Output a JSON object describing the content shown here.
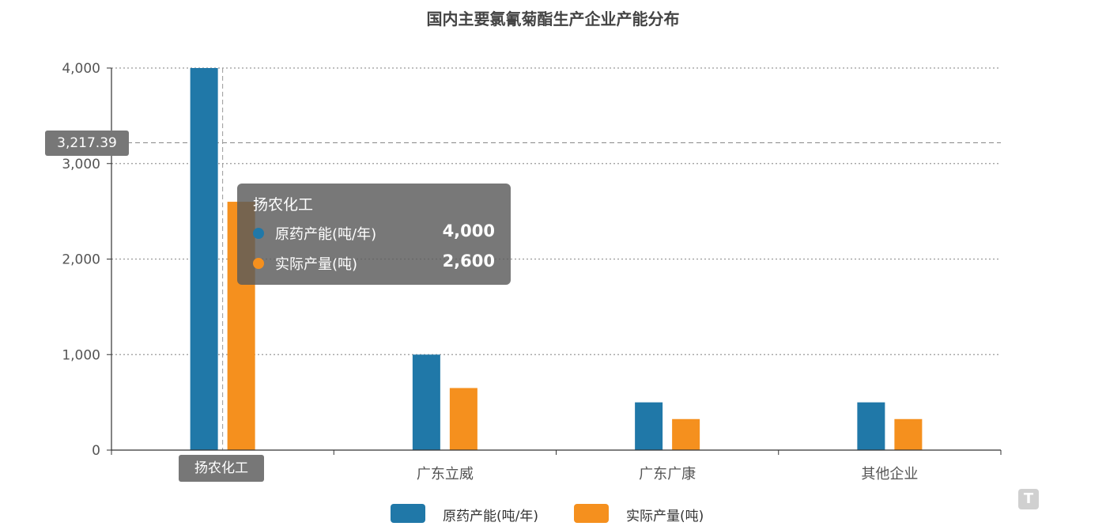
{
  "chart_data": {
    "type": "bar",
    "title": "国内主要氯氰菊酯生产企业产能分布",
    "categories": [
      "扬农化工",
      "广东立威",
      "广东广康",
      "其他企业"
    ],
    "series": [
      {
        "name": "原药产能(吨/年)",
        "color": "#2078a8",
        "values": [
          4000,
          1000,
          500,
          500
        ]
      },
      {
        "name": "实际产量(吨)",
        "color": "#f5901e",
        "values": [
          2600,
          650,
          325,
          325
        ]
      }
    ],
    "yticks": [
      "0",
      "1,000",
      "2,000",
      "3,000",
      "4,000"
    ],
    "ylim": [
      0,
      4000
    ],
    "grid": true,
    "legend_position": "bottom",
    "axis_pointer": {
      "y_value": "3,217.39",
      "y_numeric": 3217.39,
      "category": "扬农化工"
    },
    "tooltip": {
      "title": "扬农化工",
      "rows": [
        {
          "name": "原药产能(吨/年)",
          "value": "4,000"
        },
        {
          "name": "实际产量(吨)",
          "value": "2,600"
        }
      ]
    }
  },
  "watermark": {
    "logo_icon": "tmtpost-logo-icon",
    "logo_letter": "T"
  }
}
